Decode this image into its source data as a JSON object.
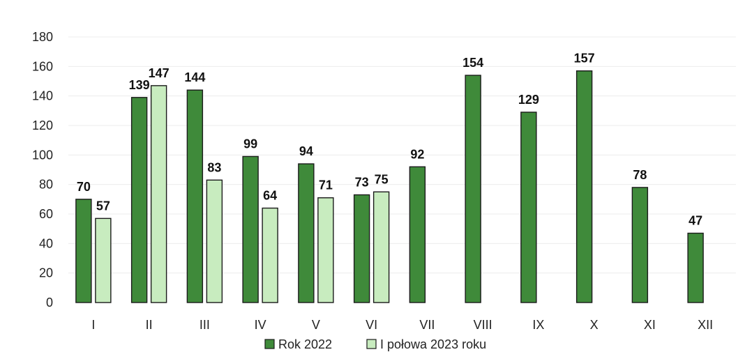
{
  "chart_data": {
    "type": "bar",
    "categories": [
      "I",
      "II",
      "III",
      "IV",
      "V",
      "VI",
      "VII",
      "VIII",
      "IX",
      "X",
      "XI",
      "XII"
    ],
    "series": [
      {
        "name": "Rok 2022",
        "values": [
          70,
          139,
          144,
          99,
          94,
          73,
          92,
          154,
          129,
          157,
          78,
          47
        ],
        "color": "#3f8a3a"
      },
      {
        "name": "I połowa 2023 roku",
        "values": [
          57,
          147,
          83,
          64,
          71,
          75,
          null,
          null,
          null,
          null,
          null,
          null
        ],
        "color": "#c8ecbf"
      }
    ],
    "yticks": [
      0,
      20,
      40,
      60,
      80,
      100,
      120,
      140,
      160,
      180
    ],
    "ylim": [
      0,
      180
    ],
    "grid": true,
    "legend_position": "bottom",
    "title": "",
    "xlabel": "",
    "ylabel": ""
  }
}
